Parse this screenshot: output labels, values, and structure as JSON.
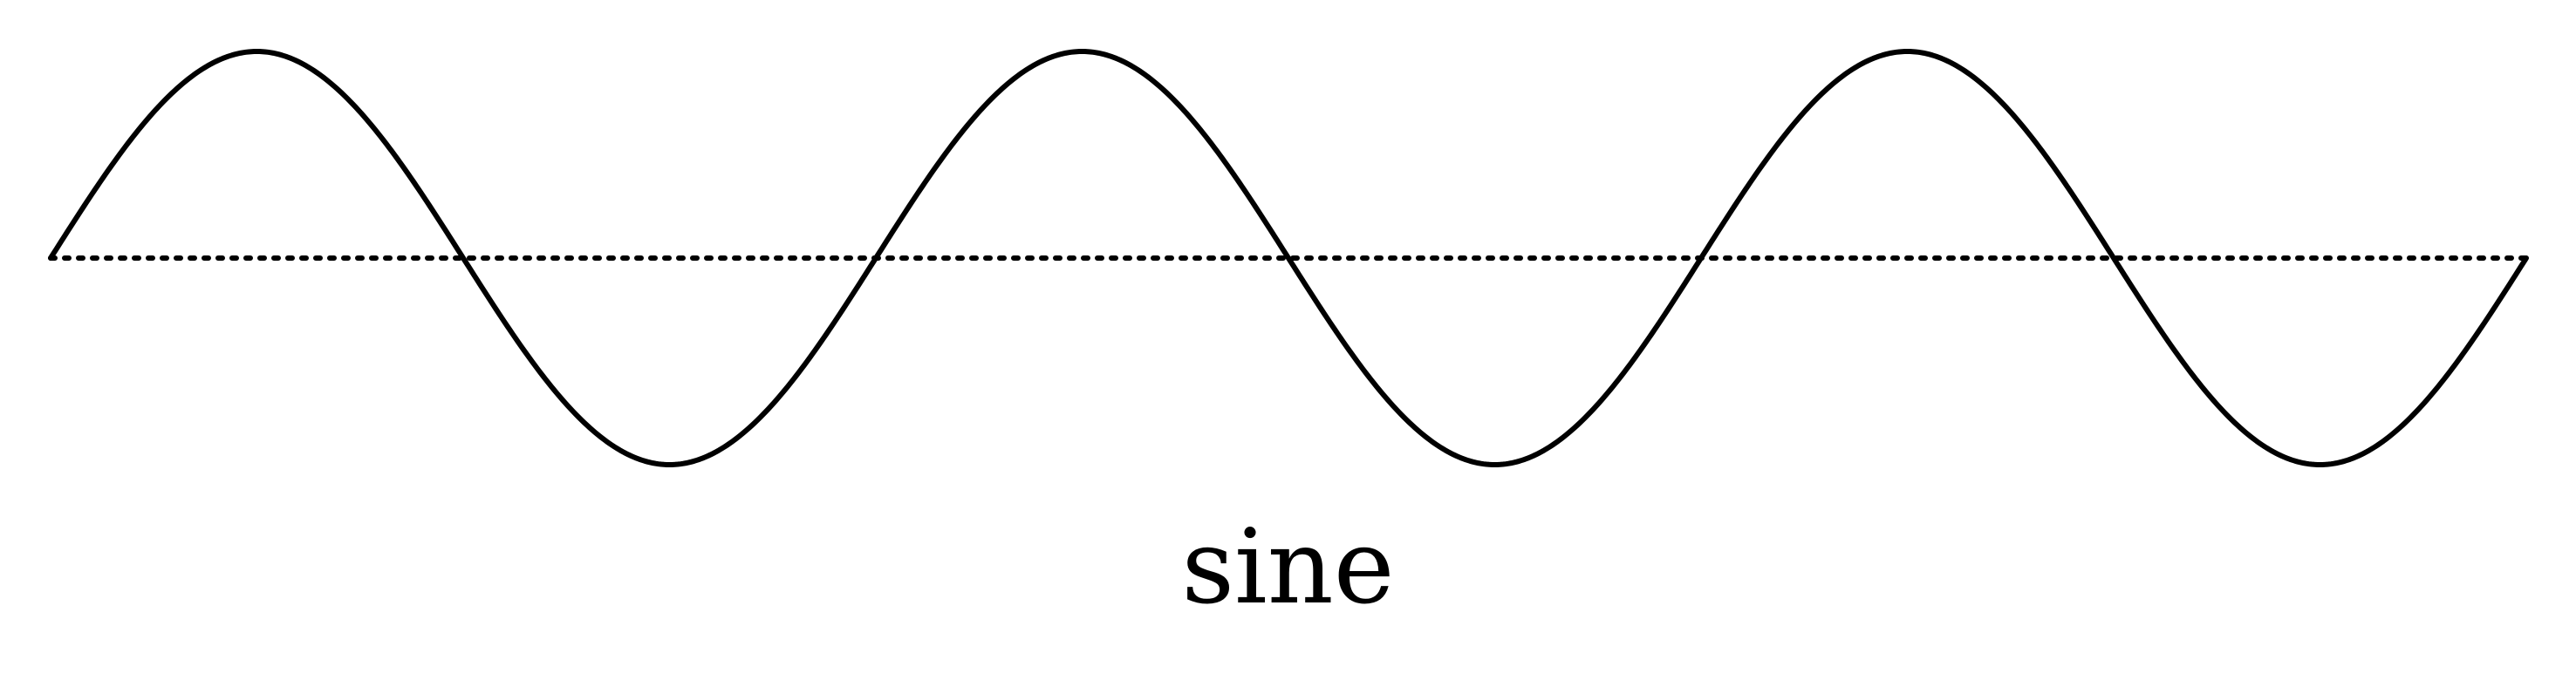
{
  "diagram": {
    "caption": "sine",
    "wave": {
      "function": "sine",
      "cycles": 3,
      "start_phase": "zero-crossing-rising",
      "stroke_color": "#000000"
    },
    "baseline": {
      "style": "dotted",
      "color": "#000000"
    },
    "background_color": "#ffffff"
  }
}
